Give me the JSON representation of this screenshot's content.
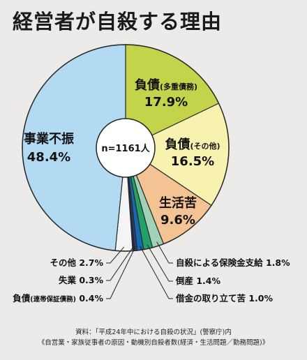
{
  "chart_data": {
    "type": "pie",
    "title": "経営者が自殺する理由",
    "center_label": "n=1161人",
    "slices": [
      {
        "label": "負債",
        "sub": "(多重債務)",
        "value": 17.9,
        "display": "17.9%",
        "color": "#c3d44a"
      },
      {
        "label": "負債",
        "sub": "(その他)",
        "value": 16.5,
        "display": "16.5%",
        "color": "#f8f2b1"
      },
      {
        "label": "生活苦",
        "sub": "",
        "value": 9.6,
        "display": "9.6%",
        "color": "#f3c394"
      },
      {
        "label": "自殺による保険金支給",
        "sub": "",
        "value": 1.8,
        "display": "1.8%",
        "color": "#9fd2b6"
      },
      {
        "label": "倒産",
        "sub": "",
        "value": 1.4,
        "display": "1.4%",
        "color": "#23a068"
      },
      {
        "label": "借金の取り立て苦",
        "sub": "",
        "value": 1.0,
        "display": "1.0%",
        "color": "#1569b0"
      },
      {
        "label": "負債",
        "sub": "(連帯保証債務)",
        "value": 0.4,
        "display": "0.4%",
        "color": "#2b3f78"
      },
      {
        "label": "失業",
        "sub": "",
        "value": 0.3,
        "display": "0.3%",
        "color": "#1e2a4a"
      },
      {
        "label": "その他",
        "sub": "",
        "value": 2.7,
        "display": "2.7%",
        "color": "#f4f4f4"
      },
      {
        "label": "事業不振",
        "sub": "",
        "value": 48.4,
        "display": "48.4%",
        "color": "#b3daf3"
      }
    ]
  },
  "source": {
    "line1": "資料：「平成24年中における自殺の状況」(警察庁)内",
    "line2": "《自営業・家族従事者の原因・動機別自殺者数(経済・生活問題／勤務問題)》"
  }
}
